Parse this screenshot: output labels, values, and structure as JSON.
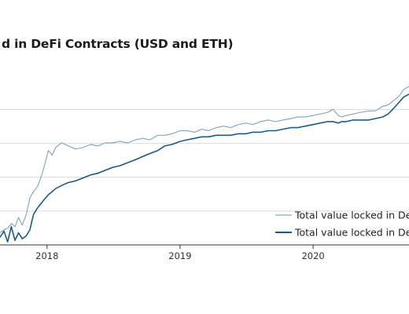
{
  "colors": {
    "usd_line": "#8aa6c4",
    "eth_line": "#1a5a8a",
    "grid": "#d9d9d9",
    "axis": "#333333"
  },
  "chart_data": {
    "type": "line",
    "title": "d in DeFi Contracts (USD and ETH)",
    "xlabel": "",
    "ylabel": "",
    "x_tick_labels": [
      "2018",
      "2019",
      "2020"
    ],
    "xlim": [
      "2017-08-25",
      "2020-09-20"
    ],
    "ylim": [
      0,
      100
    ],
    "grid": "horizontal",
    "legend_position": "bottom-right",
    "series": [
      {
        "name": "Total value locked in DeFi",
        "color": "#8aa6c4",
        "x": [
          "2017-08-25",
          "2017-09-05",
          "2017-09-15",
          "2017-09-25",
          "2017-10-05",
          "2017-10-15",
          "2017-10-25",
          "2017-11-05",
          "2017-11-15",
          "2017-11-25",
          "2017-12-05",
          "2017-12-15",
          "2017-12-25",
          "2018-01-05",
          "2018-01-15",
          "2018-01-25",
          "2018-02-10",
          "2018-03-01",
          "2018-03-20",
          "2018-04-10",
          "2018-05-01",
          "2018-05-20",
          "2018-06-10",
          "2018-07-01",
          "2018-07-20",
          "2018-08-10",
          "2018-09-01",
          "2018-09-20",
          "2018-10-10",
          "2018-11-01",
          "2018-11-20",
          "2018-12-10",
          "2019-01-01",
          "2019-01-20",
          "2019-02-10",
          "2019-03-01",
          "2019-03-20",
          "2019-04-10",
          "2019-05-01",
          "2019-05-20",
          "2019-06-10",
          "2019-07-01",
          "2019-07-20",
          "2019-08-10",
          "2019-09-01",
          "2019-09-20",
          "2019-10-10",
          "2019-11-01",
          "2019-11-20",
          "2019-12-10",
          "2020-01-01",
          "2020-01-20",
          "2020-02-10",
          "2020-02-25",
          "2020-03-10",
          "2020-03-20",
          "2020-04-01",
          "2020-04-20",
          "2020-05-10",
          "2020-06-01",
          "2020-06-20",
          "2020-07-10",
          "2020-07-25",
          "2020-08-10",
          "2020-08-25",
          "2020-09-05",
          "2020-09-20"
        ],
        "y": [
          8,
          10,
          11,
          14,
          12,
          18,
          13,
          20,
          31,
          35,
          38,
          44,
          52,
          62,
          59,
          64,
          67,
          65,
          63,
          64,
          66,
          65,
          67,
          67,
          68,
          67,
          69,
          70,
          69,
          72,
          72,
          73,
          75,
          75,
          74,
          76,
          75,
          77,
          78,
          77,
          79,
          80,
          79,
          81,
          82,
          81,
          82,
          83,
          84,
          84,
          85,
          86,
          87,
          89,
          85,
          84,
          85,
          86,
          87,
          88,
          88,
          91,
          92,
          95,
          98,
          102,
          104
        ]
      },
      {
        "name": "Total value locked in DeFi",
        "color": "#1a5a8a",
        "x": [
          "2017-08-25",
          "2017-09-05",
          "2017-09-15",
          "2017-09-25",
          "2017-10-05",
          "2017-10-15",
          "2017-10-25",
          "2017-11-05",
          "2017-11-15",
          "2017-11-25",
          "2017-12-05",
          "2017-12-15",
          "2017-12-25",
          "2018-01-05",
          "2018-01-15",
          "2018-01-25",
          "2018-02-10",
          "2018-03-01",
          "2018-03-20",
          "2018-04-10",
          "2018-05-01",
          "2018-05-20",
          "2018-06-10",
          "2018-07-01",
          "2018-07-20",
          "2018-08-10",
          "2018-09-01",
          "2018-09-20",
          "2018-10-10",
          "2018-11-01",
          "2018-11-20",
          "2018-12-10",
          "2019-01-01",
          "2019-01-20",
          "2019-02-10",
          "2019-03-01",
          "2019-03-20",
          "2019-04-10",
          "2019-05-01",
          "2019-05-20",
          "2019-06-10",
          "2019-07-01",
          "2019-07-20",
          "2019-08-10",
          "2019-09-01",
          "2019-09-20",
          "2019-10-10",
          "2019-11-01",
          "2019-11-20",
          "2019-12-10",
          "2020-01-01",
          "2020-01-20",
          "2020-02-10",
          "2020-02-25",
          "2020-03-10",
          "2020-03-20",
          "2020-04-01",
          "2020-04-20",
          "2020-05-10",
          "2020-06-01",
          "2020-06-20",
          "2020-07-10",
          "2020-07-25",
          "2020-08-10",
          "2020-08-25",
          "2020-09-05",
          "2020-09-20"
        ],
        "y": [
          5,
          9,
          2,
          12,
          3,
          8,
          4,
          6,
          10,
          20,
          24,
          27,
          30,
          33,
          35,
          37,
          39,
          41,
          42,
          44,
          46,
          47,
          49,
          51,
          52,
          54,
          56,
          58,
          60,
          62,
          65,
          66,
          68,
          69,
          70,
          71,
          71,
          72,
          72,
          72,
          73,
          73,
          74,
          74,
          75,
          75,
          76,
          77,
          77,
          78,
          79,
          80,
          81,
          81,
          80,
          81,
          81,
          82,
          82,
          82,
          83,
          84,
          86,
          90,
          94,
          97,
          99
        ]
      }
    ]
  }
}
